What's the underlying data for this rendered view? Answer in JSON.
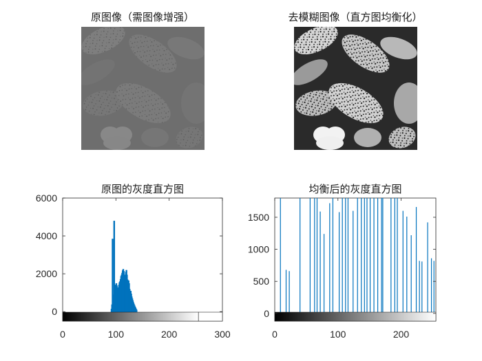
{
  "titles": {
    "original_image": "原图像（需图像增强）",
    "enhanced_image": "去模糊图像（直方图均衡化）",
    "hist_original": "原图的灰度直方图",
    "hist_equalized": "均衡后的灰度直方图"
  },
  "colors": {
    "bar": "#0072BD",
    "axis": "#262626"
  },
  "images": {
    "original": {
      "subject": "pollen grains micrograph",
      "style": "low-contrast gray"
    },
    "enhanced": {
      "subject": "pollen grains micrograph",
      "style": "high-contrast equalized"
    }
  },
  "chart_data": [
    {
      "type": "bar",
      "title": "原图的灰度直方图",
      "xlim": [
        0,
        300
      ],
      "ylim": [
        -500,
        6000
      ],
      "xticks": [
        0,
        100,
        200,
        300
      ],
      "yticks": [
        0,
        2000,
        4000,
        6000
      ],
      "colorbar": {
        "range": [
          0,
          255
        ]
      },
      "x": [
        91,
        92,
        93,
        94,
        95,
        96,
        97,
        98,
        99,
        100,
        101,
        102,
        103,
        104,
        105,
        106,
        107,
        108,
        109,
        110,
        111,
        112,
        113,
        114,
        115,
        116,
        117,
        118,
        119,
        120,
        121,
        122,
        123,
        124,
        125,
        126,
        127,
        128,
        129,
        130,
        131,
        132,
        133,
        134,
        135,
        136,
        137,
        138
      ],
      "values": [
        150,
        380,
        3850,
        520,
        900,
        4800,
        1150,
        1300,
        1420,
        1500,
        1380,
        1250,
        1180,
        1280,
        1420,
        1550,
        1600,
        1720,
        1880,
        1950,
        2050,
        2180,
        2250,
        2150,
        1950,
        1850,
        1950,
        2100,
        2200,
        1950,
        1700,
        1500,
        1650,
        1500,
        1200,
        1050,
        1100,
        950,
        800,
        700,
        600,
        500,
        420,
        350,
        280,
        220,
        160,
        100
      ]
    },
    {
      "type": "bar",
      "title": "均衡后的灰度直方图",
      "xlim": [
        0,
        255
      ],
      "ylim": [
        -120,
        1800
      ],
      "xticks": [
        0,
        100,
        200
      ],
      "yticks": [
        0,
        500,
        1000,
        1500
      ],
      "colorbar": {
        "range": [
          0,
          255
        ]
      },
      "x": [
        9,
        18,
        23,
        40,
        56,
        63,
        67,
        72,
        78,
        87,
        92,
        102,
        107,
        112,
        116,
        124,
        131,
        137,
        142,
        146,
        151,
        157,
        163,
        169,
        171,
        184,
        190,
        194,
        203,
        209,
        216,
        224,
        229,
        233,
        242,
        248,
        252
      ],
      "values": [
        1850,
        680,
        660,
        1850,
        1850,
        1850,
        1850,
        1590,
        1240,
        1720,
        1850,
        1580,
        1850,
        1850,
        1850,
        1600,
        1850,
        1850,
        1850,
        1850,
        1850,
        1850,
        1850,
        1850,
        1850,
        1850,
        1850,
        1850,
        1600,
        1510,
        1220,
        1660,
        820,
        810,
        1420,
        860,
        820
      ]
    }
  ]
}
